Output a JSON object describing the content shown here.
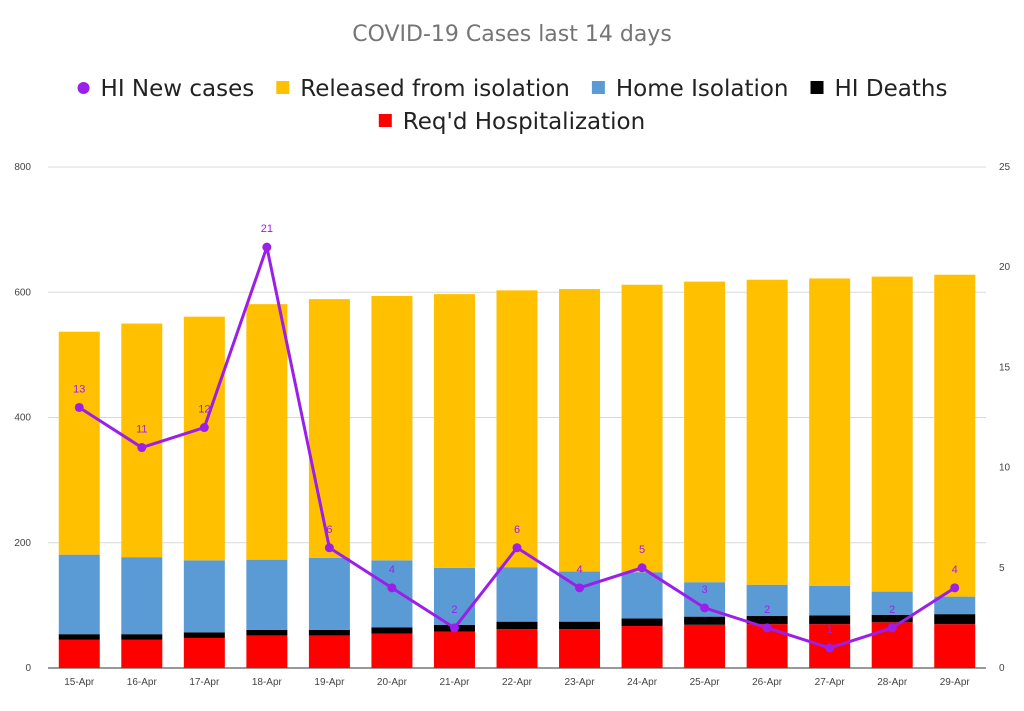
{
  "chart_data": {
    "type": "bar",
    "stacked": true,
    "title": "COVID-19 Cases last 14 days",
    "categories": [
      "15-Apr",
      "16-Apr",
      "17-Apr",
      "18-Apr",
      "19-Apr",
      "20-Apr",
      "21-Apr",
      "22-Apr",
      "23-Apr",
      "24-Apr",
      "25-Apr",
      "26-Apr",
      "27-Apr",
      "28-Apr",
      "29-Apr"
    ],
    "y_left": {
      "min": 0,
      "max": 800,
      "ticks": [
        "0",
        "200",
        "400",
        "600",
        "800"
      ]
    },
    "y_right": {
      "min": 0,
      "max": 25,
      "ticks": [
        "0",
        "5",
        "10",
        "15",
        "20",
        "25"
      ]
    },
    "grid": true,
    "legend_position": "top",
    "legend": [
      {
        "key": "new_cases",
        "label": "HI New cases",
        "marker": "circle"
      },
      {
        "key": "released",
        "label": "Released from isolation",
        "marker": "square"
      },
      {
        "key": "home",
        "label": "Home Isolation",
        "marker": "square"
      },
      {
        "key": "deaths",
        "label": "HI Deaths",
        "marker": "square"
      },
      {
        "key": "hosp",
        "label": "Req'd Hospitalization",
        "marker": "square"
      }
    ],
    "series": [
      {
        "key": "hosp",
        "name": "Req'd Hospitalization",
        "type": "bar",
        "axis": "left",
        "color": "#ff0000",
        "values": [
          45,
          45,
          48,
          52,
          52,
          55,
          58,
          62,
          62,
          67,
          69,
          70,
          70,
          73,
          70
        ]
      },
      {
        "key": "deaths",
        "name": "HI Deaths",
        "type": "bar",
        "axis": "left",
        "color": "#000000",
        "values": [
          9,
          9,
          9,
          9,
          9,
          10,
          11,
          12,
          12,
          12,
          13,
          13,
          14,
          12,
          16
        ]
      },
      {
        "key": "home",
        "name": "Home Isolation",
        "type": "bar",
        "axis": "left",
        "color": "#5b9bd5",
        "values": [
          127,
          123,
          115,
          112,
          115,
          107,
          91,
          87,
          80,
          74,
          55,
          50,
          47,
          37,
          28
        ]
      },
      {
        "key": "released",
        "name": "Released from isolation",
        "type": "bar",
        "axis": "left",
        "color": "#ffc000",
        "values": [
          356,
          373,
          389,
          408,
          413,
          422,
          437,
          442,
          451,
          459,
          480,
          487,
          491,
          503,
          514
        ]
      },
      {
        "key": "new_cases",
        "name": "HI New cases",
        "type": "line",
        "axis": "right",
        "color": "#9b1fe8",
        "values": [
          13,
          11,
          12,
          21,
          6,
          4,
          2,
          6,
          4,
          5,
          3,
          2,
          1,
          2,
          4
        ],
        "labels_shown": [
          true,
          true,
          true,
          true,
          true,
          true,
          true,
          true,
          true,
          true,
          true,
          true,
          true,
          true,
          true
        ]
      }
    ]
  }
}
